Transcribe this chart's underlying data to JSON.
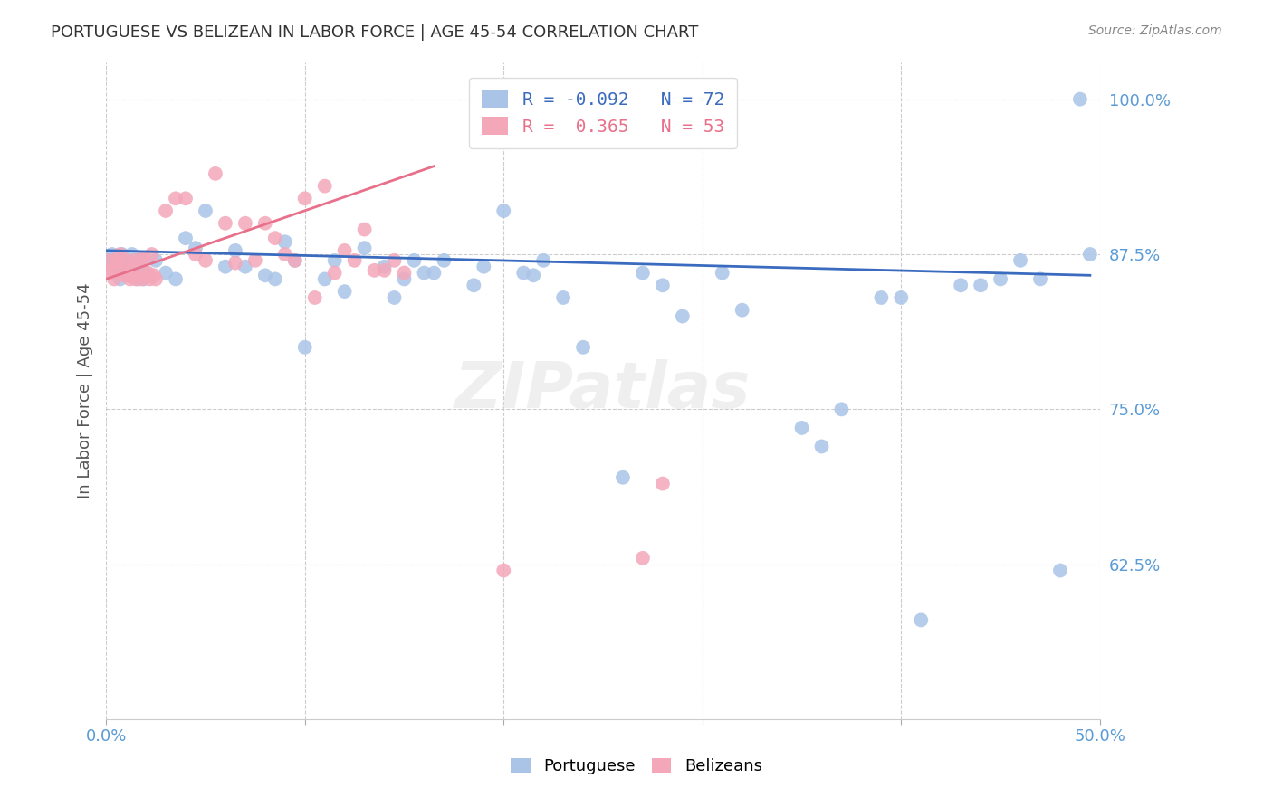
{
  "title": "PORTUGUESE VS BELIZEAN IN LABOR FORCE | AGE 45-54 CORRELATION CHART",
  "source": "Source: ZipAtlas.com",
  "ylabel": "In Labor Force | Age 45-54",
  "xlim": [
    0.0,
    0.5
  ],
  "ylim": [
    0.5,
    1.03
  ],
  "ytick_right_vals": [
    0.625,
    0.75,
    0.875,
    1.0
  ],
  "ytick_right_labels": [
    "62.5%",
    "75.0%",
    "87.5%",
    "100.0%"
  ],
  "blue_R": -0.092,
  "blue_N": 72,
  "pink_R": 0.365,
  "pink_N": 53,
  "blue_color": "#aac4e8",
  "pink_color": "#f4a7b9",
  "blue_line_color": "#3a6bbf",
  "pink_line_color": "#e8708a",
  "legend_label_blue": "Portuguese",
  "legend_label_pink": "Belizeans",
  "watermark": "ZIPatlas",
  "blue_dots_x": [
    0.002,
    0.003,
    0.004,
    0.005,
    0.006,
    0.007,
    0.008,
    0.009,
    0.01,
    0.011,
    0.012,
    0.013,
    0.014,
    0.015,
    0.016,
    0.017,
    0.018,
    0.019,
    0.02,
    0.025,
    0.03,
    0.035,
    0.04,
    0.045,
    0.05,
    0.06,
    0.065,
    0.07,
    0.08,
    0.085,
    0.09,
    0.095,
    0.1,
    0.11,
    0.115,
    0.12,
    0.13,
    0.14,
    0.145,
    0.15,
    0.155,
    0.16,
    0.165,
    0.17,
    0.185,
    0.19,
    0.2,
    0.21,
    0.215,
    0.22,
    0.23,
    0.24,
    0.26,
    0.27,
    0.28,
    0.29,
    0.31,
    0.32,
    0.35,
    0.36,
    0.37,
    0.39,
    0.4,
    0.41,
    0.43,
    0.44,
    0.45,
    0.46,
    0.47,
    0.48,
    0.49,
    0.495
  ],
  "blue_dots_y": [
    0.87,
    0.875,
    0.868,
    0.872,
    0.86,
    0.855,
    0.875,
    0.865,
    0.87,
    0.862,
    0.858,
    0.875,
    0.87,
    0.865,
    0.855,
    0.87,
    0.872,
    0.855,
    0.86,
    0.87,
    0.86,
    0.855,
    0.888,
    0.88,
    0.91,
    0.865,
    0.878,
    0.865,
    0.858,
    0.855,
    0.885,
    0.87,
    0.8,
    0.855,
    0.87,
    0.845,
    0.88,
    0.865,
    0.84,
    0.855,
    0.87,
    0.86,
    0.86,
    0.87,
    0.85,
    0.865,
    0.91,
    0.86,
    0.858,
    0.87,
    0.84,
    0.8,
    0.695,
    0.86,
    0.85,
    0.825,
    0.86,
    0.83,
    0.735,
    0.72,
    0.75,
    0.84,
    0.84,
    0.58,
    0.85,
    0.85,
    0.855,
    0.87,
    0.855,
    0.62,
    1.0,
    0.875
  ],
  "pink_dots_x": [
    0.001,
    0.002,
    0.003,
    0.004,
    0.005,
    0.006,
    0.007,
    0.008,
    0.009,
    0.01,
    0.011,
    0.012,
    0.013,
    0.014,
    0.015,
    0.016,
    0.017,
    0.018,
    0.019,
    0.02,
    0.021,
    0.022,
    0.023,
    0.024,
    0.025,
    0.03,
    0.035,
    0.04,
    0.045,
    0.05,
    0.055,
    0.06,
    0.065,
    0.07,
    0.075,
    0.08,
    0.085,
    0.09,
    0.095,
    0.1,
    0.105,
    0.11,
    0.115,
    0.12,
    0.125,
    0.13,
    0.135,
    0.14,
    0.145,
    0.15,
    0.2,
    0.27,
    0.28
  ],
  "pink_dots_y": [
    0.87,
    0.86,
    0.863,
    0.855,
    0.87,
    0.868,
    0.875,
    0.865,
    0.858,
    0.87,
    0.858,
    0.855,
    0.862,
    0.87,
    0.855,
    0.858,
    0.87,
    0.855,
    0.872,
    0.858,
    0.86,
    0.855,
    0.875,
    0.858,
    0.855,
    0.91,
    0.92,
    0.92,
    0.875,
    0.87,
    0.94,
    0.9,
    0.868,
    0.9,
    0.87,
    0.9,
    0.888,
    0.875,
    0.87,
    0.92,
    0.84,
    0.93,
    0.86,
    0.878,
    0.87,
    0.895,
    0.862,
    0.862,
    0.87,
    0.86,
    0.62,
    0.63,
    0.69
  ],
  "blue_line_x": [
    0.0,
    0.495
  ],
  "blue_line_y": [
    0.878,
    0.858
  ],
  "pink_line_x": [
    0.0,
    0.165
  ],
  "pink_line_y": [
    0.855,
    0.946
  ]
}
